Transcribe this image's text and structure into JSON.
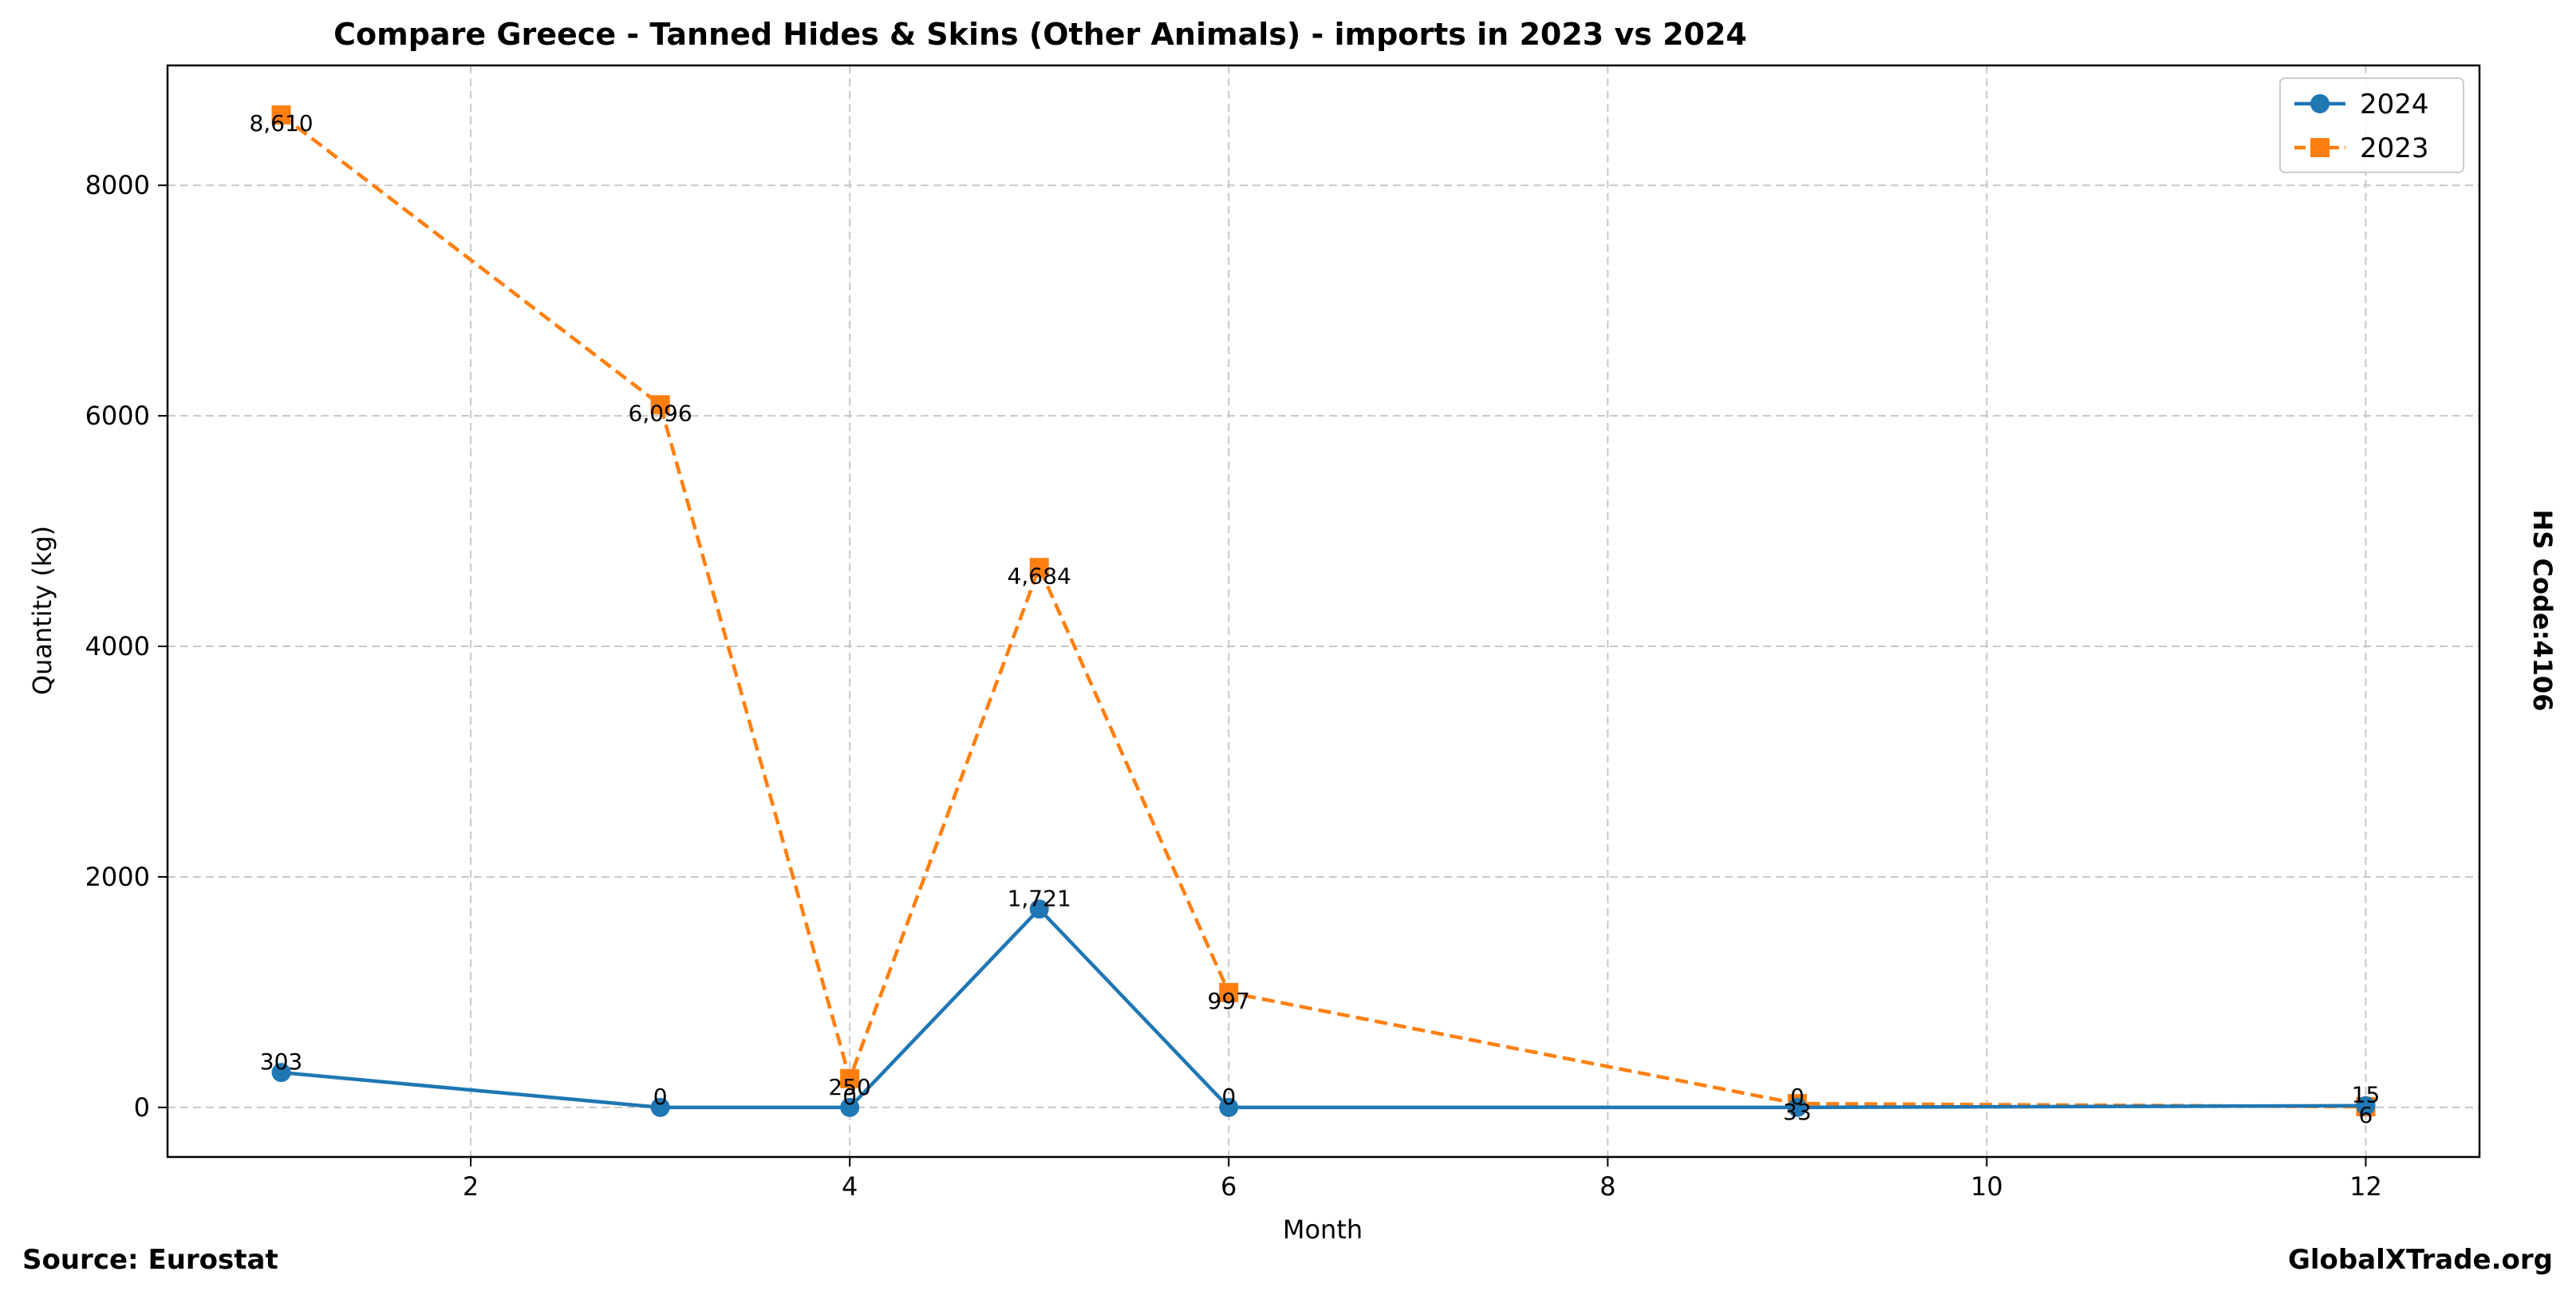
{
  "chart_data": {
    "type": "line",
    "title": "Compare Greece - Tanned Hides & Skins (Other Animals) - imports in 2023 vs 2024",
    "xlabel": "Month",
    "ylabel": "Quantity (kg)",
    "xlim": [
      0.4,
      12.6
    ],
    "ylim": [
      -430,
      9040
    ],
    "xticks": [
      2,
      4,
      6,
      8,
      10,
      12
    ],
    "yticks": [
      0,
      2000,
      4000,
      6000,
      8000
    ],
    "grid": true,
    "legend_position": "top-right",
    "series": [
      {
        "name": "2024",
        "color": "#1f77b4",
        "line_style": "solid",
        "marker": "circle",
        "x": [
          1,
          3,
          4,
          5,
          6,
          9,
          12
        ],
        "y": [
          303,
          0,
          0,
          1721,
          0,
          0,
          15
        ],
        "labels": [
          "303",
          "0",
          "0",
          "1,721",
          "0",
          "0",
          "15"
        ]
      },
      {
        "name": "2023",
        "color": "#ff7f0e",
        "line_style": "dashed",
        "marker": "square",
        "x": [
          1,
          3,
          4,
          5,
          6,
          9,
          12
        ],
        "y": [
          8610,
          6096,
          250,
          4684,
          997,
          33,
          6
        ],
        "labels": [
          "8,610",
          "6,096",
          "250",
          "4,684",
          "997",
          "33",
          "6"
        ]
      }
    ]
  },
  "side_label": "HS Code:4106",
  "footer": {
    "source": "Source: Eurostat",
    "site": "GlobalXTrade.org"
  }
}
